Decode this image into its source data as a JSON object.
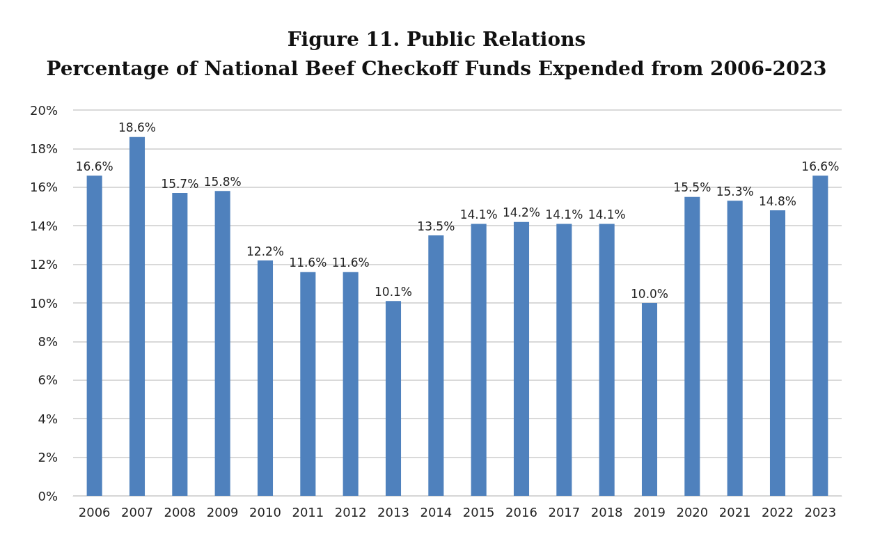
{
  "chart_data": {
    "type": "bar",
    "title": "Figure 11. Public Relations",
    "subtitle": "Percentage of National Beef Checkoff Funds Expended from 2006-2023",
    "categories": [
      "2006",
      "2007",
      "2008",
      "2009",
      "2010",
      "2011",
      "2012",
      "2013",
      "2014",
      "2015",
      "2016",
      "2017",
      "2018",
      "2019",
      "2020",
      "2021",
      "2022",
      "2023"
    ],
    "values": [
      16.6,
      18.6,
      15.7,
      15.8,
      12.2,
      11.6,
      11.6,
      10.1,
      13.5,
      14.1,
      14.2,
      14.1,
      14.1,
      10.0,
      15.5,
      15.3,
      14.8,
      16.6
    ],
    "value_labels": [
      "16.6%",
      "18.6%",
      "15.7%",
      "15.8%",
      "12.2%",
      "11.6%",
      "11.6%",
      "10.1%",
      "13.5%",
      "14.1%",
      "14.2%",
      "14.1%",
      "14.1%",
      "10.0%",
      "15.5%",
      "15.3%",
      "14.8%",
      "16.6%"
    ],
    "color": "#4f81bd",
    "ylim": [
      0,
      20
    ],
    "yticks": [
      {
        "value": 0,
        "label": "0%"
      },
      {
        "value": 2,
        "label": "2%"
      },
      {
        "value": 4,
        "label": "4%"
      },
      {
        "value": 6,
        "label": "6%"
      },
      {
        "value": 8,
        "label": "8%"
      },
      {
        "value": 10,
        "label": "10%"
      },
      {
        "value": 12,
        "label": "12%"
      },
      {
        "value": 14,
        "label": "14%"
      },
      {
        "value": 16,
        "label": "16%"
      },
      {
        "value": 18,
        "label": "18%"
      },
      {
        "value": 20,
        "label": "20%"
      }
    ],
    "grid": true
  }
}
